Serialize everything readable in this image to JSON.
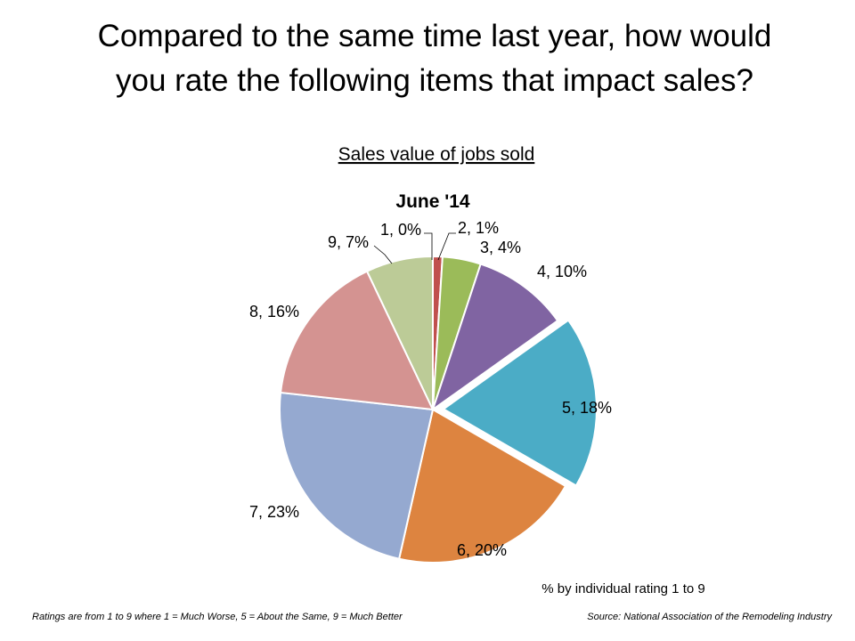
{
  "chart_data": {
    "type": "pie",
    "title": "Compared to the same time last year, how would you rate the following items that impact sales?",
    "subtitle": "Sales value of jobs sold",
    "chart_title": "June '14",
    "note": "% by individual rating 1 to 9",
    "footer_left": "Ratings are from 1 to 9 where 1 = Much Worse, 5 = About the Same, 9 = Much Better",
    "footer_right": "Source: National Association of the Remodeling Industry",
    "categories": [
      "1",
      "2",
      "3",
      "4",
      "5",
      "6",
      "7",
      "8",
      "9"
    ],
    "values": [
      0,
      1,
      4,
      10,
      18,
      20,
      23,
      16,
      7
    ],
    "value_labels": [
      "1, 0%",
      "2, 1%",
      "3, 4%",
      "4, 10%",
      "5, 18%",
      "6, 20%",
      "7, 23%",
      "8, 16%",
      "9, 7%"
    ],
    "colors": [
      "#4f81bd",
      "#c0504d",
      "#9bbb59",
      "#8064a2",
      "#4bacc6",
      "#dd8440",
      "#95a9d0",
      "#d49391",
      "#bccb97"
    ],
    "explode": [
      false,
      false,
      false,
      false,
      true,
      false,
      false,
      false,
      false
    ]
  }
}
